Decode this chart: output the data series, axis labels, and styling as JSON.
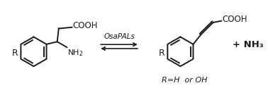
{
  "background_color": "#ffffff",
  "arrow_label": "OsaPALs",
  "product_label": "+ NH₃",
  "subtitle": "R=H  or OH",
  "fig_width": 3.78,
  "fig_height": 1.25,
  "dpi": 100,
  "line_color": "#1a1a1a",
  "line_width": 1.4,
  "text_color": "#1a1a1a",
  "xlim": [
    0,
    10
  ],
  "ylim": [
    0,
    3.3
  ]
}
